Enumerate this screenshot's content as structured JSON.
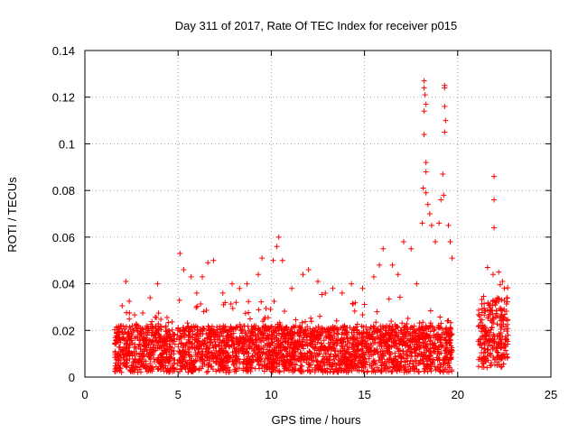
{
  "chart_data": {
    "type": "scatter",
    "title": "Day 311 of 2017, Rate Of TEC Index for receiver p015",
    "xlabel": "GPS time / hours",
    "ylabel": "ROTI / TECUs",
    "xlim": [
      0,
      25
    ],
    "ylim": [
      0,
      0.14
    ],
    "xticks": [
      "0",
      "5",
      "10",
      "15",
      "20",
      "25"
    ],
    "xtick_values": [
      0,
      5,
      10,
      15,
      20,
      25
    ],
    "yticks": [
      "0",
      "0.02",
      "0.04",
      "0.06",
      "0.08",
      "0.1",
      "0.12",
      "0.14"
    ],
    "ytick_values": [
      0,
      0.02,
      0.04,
      0.06,
      0.08,
      0.1,
      0.12,
      0.14
    ],
    "grid": true,
    "marker": "+",
    "marker_color": "#ff0000",
    "series": [
      {
        "name": "ROTI",
        "points": [
          [
            2.2,
            0.041
          ],
          [
            3.5,
            0.034
          ],
          [
            3.9,
            0.04
          ],
          [
            5.1,
            0.053
          ],
          [
            5.3,
            0.046
          ],
          [
            5.7,
            0.043
          ],
          [
            6.0,
            0.036
          ],
          [
            6.3,
            0.043
          ],
          [
            6.6,
            0.049
          ],
          [
            6.9,
            0.05
          ],
          [
            7.4,
            0.036
          ],
          [
            7.9,
            0.04
          ],
          [
            8.3,
            0.038
          ],
          [
            8.7,
            0.04
          ],
          [
            9.3,
            0.044
          ],
          [
            9.5,
            0.051
          ],
          [
            10.1,
            0.05
          ],
          [
            10.3,
            0.056
          ],
          [
            10.4,
            0.06
          ],
          [
            10.6,
            0.05
          ],
          [
            11.1,
            0.038
          ],
          [
            11.7,
            0.044
          ],
          [
            12.0,
            0.046
          ],
          [
            12.5,
            0.041
          ],
          [
            12.9,
            0.036
          ],
          [
            13.3,
            0.038
          ],
          [
            13.8,
            0.036
          ],
          [
            14.3,
            0.04
          ],
          [
            14.9,
            0.038
          ],
          [
            15.5,
            0.043
          ],
          [
            15.8,
            0.048
          ],
          [
            16.0,
            0.055
          ],
          [
            16.5,
            0.048
          ],
          [
            16.8,
            0.044
          ],
          [
            17.1,
            0.058
          ],
          [
            17.5,
            0.055
          ],
          [
            17.8,
            0.04
          ],
          [
            18.1,
            0.066
          ],
          [
            18.15,
            0.081
          ],
          [
            18.2,
            0.127
          ],
          [
            18.2,
            0.124
          ],
          [
            18.2,
            0.114
          ],
          [
            18.2,
            0.104
          ],
          [
            18.25,
            0.121
          ],
          [
            18.3,
            0.117
          ],
          [
            18.3,
            0.092
          ],
          [
            18.3,
            0.088
          ],
          [
            18.3,
            0.079
          ],
          [
            18.4,
            0.074
          ],
          [
            18.5,
            0.07
          ],
          [
            18.6,
            0.065
          ],
          [
            18.8,
            0.058
          ],
          [
            19.0,
            0.066
          ],
          [
            19.1,
            0.076
          ],
          [
            19.2,
            0.087
          ],
          [
            19.25,
            0.078
          ],
          [
            19.3,
            0.125
          ],
          [
            19.3,
            0.124
          ],
          [
            19.3,
            0.116
          ],
          [
            19.35,
            0.11
          ],
          [
            19.3,
            0.105
          ],
          [
            19.5,
            0.065
          ],
          [
            19.6,
            0.058
          ],
          [
            19.7,
            0.051
          ],
          [
            21.6,
            0.047
          ],
          [
            21.9,
            0.044
          ],
          [
            21.95,
            0.086
          ],
          [
            21.95,
            0.076
          ],
          [
            21.95,
            0.064
          ],
          [
            22.2,
            0.045
          ],
          [
            22.4,
            0.041
          ],
          [
            22.5,
            0.038
          ]
        ]
      }
    ],
    "coverage_segments": [
      {
        "start": 1.6,
        "end": 19.7,
        "baseline_low": 0.002,
        "baseline_high": 0.022
      },
      {
        "start": 21.1,
        "end": 22.7,
        "baseline_low": 0.004,
        "baseline_high": 0.034
      }
    ]
  }
}
